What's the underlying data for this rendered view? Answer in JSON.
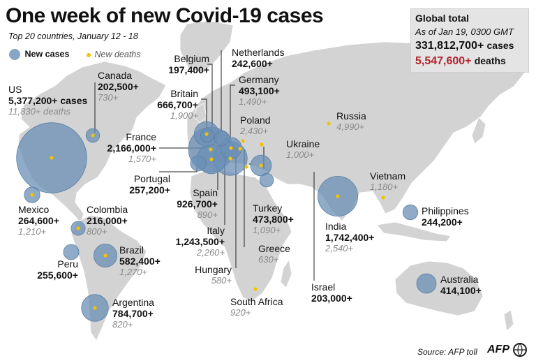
{
  "title": "One week of new Covid-19 cases",
  "subtitle": "Top 20 countries, January 12 - 18",
  "legend": {
    "cases": "New cases",
    "deaths": "New deaths"
  },
  "global": {
    "heading": "Global total",
    "as_of": "As of Jan 19, 0300 GMT",
    "cases_value": "331,812,700+",
    "cases_unit": "cases",
    "deaths_value": "5,547,600+",
    "deaths_unit": "deaths"
  },
  "countries": {
    "us": {
      "name": "US",
      "cases": "5,377,200+ cases",
      "deaths": "11,830+ deaths"
    },
    "canada": {
      "name": "Canada",
      "cases": "202,500+",
      "deaths": "730+"
    },
    "mexico": {
      "name": "Mexico",
      "cases": "264,600+",
      "deaths": "1,210+"
    },
    "colombia": {
      "name": "Colombia",
      "cases": "216,000+",
      "deaths": "800+"
    },
    "peru": {
      "name": "Peru",
      "cases": "255,600+"
    },
    "brazil": {
      "name": "Brazil",
      "cases": "582,400+",
      "deaths": "1,270+"
    },
    "argentina": {
      "name": "Argentina",
      "cases": "784,700+",
      "deaths": "820+"
    },
    "belgium": {
      "name": "Belgium",
      "cases": "197,400+"
    },
    "netherlands": {
      "name": "Netherlands",
      "cases": "242,600+"
    },
    "germany": {
      "name": "Germany",
      "cases": "493,100+",
      "deaths": "1,490+"
    },
    "britain": {
      "name": "Britain",
      "cases": "666,700+",
      "deaths": "1,900+"
    },
    "poland": {
      "name": "Poland",
      "deaths": "2,430+"
    },
    "france": {
      "name": "France",
      "cases": "2,166,000+",
      "deaths": "1,570+"
    },
    "ukraine": {
      "name": "Ukraine",
      "deaths": "1,000+"
    },
    "portugal": {
      "name": "Portugal",
      "cases": "257,200+"
    },
    "spain": {
      "name": "Spain",
      "cases": "926,700+",
      "deaths": "890+"
    },
    "italy": {
      "name": "Italy",
      "cases": "1,243,500+",
      "deaths": "2,260+"
    },
    "hungary": {
      "name": "Hungary",
      "deaths": "580+"
    },
    "turkey": {
      "name": "Turkey",
      "cases": "473,800+",
      "deaths": "1,090+"
    },
    "greece": {
      "name": "Greece",
      "deaths": "630+"
    },
    "israel": {
      "name": "Israel",
      "cases": "203,000+"
    },
    "south_africa": {
      "name": "South Africa",
      "deaths": "920+"
    },
    "russia": {
      "name": "Russia",
      "deaths": "4,990+"
    },
    "vietnam": {
      "name": "Vietnam",
      "deaths": "1,180+"
    },
    "india": {
      "name": "India",
      "cases": "1,742,400+",
      "deaths": "2,540+"
    },
    "philippines": {
      "name": "Philippines",
      "cases": "244,200+"
    },
    "australia": {
      "name": "Australia",
      "cases": "414,100+"
    }
  },
  "colors": {
    "bubble": "#6b8fb5",
    "dot": "#f2c300",
    "land": "#d3d3d3",
    "deaths_text": "#8a8a8a",
    "deaths_total": "#b0242c"
  },
  "source": "Source: AFP toll",
  "agency": "AFP"
}
